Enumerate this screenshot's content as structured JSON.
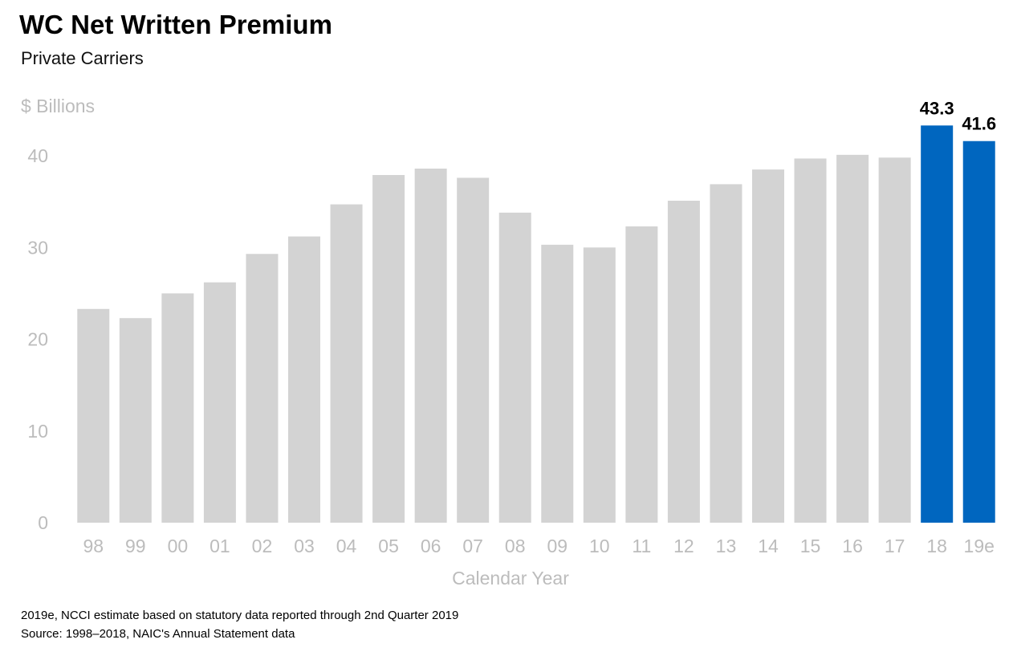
{
  "header": {
    "title": "WC Net Written Premium",
    "subtitle": "Private Carriers"
  },
  "chart_data": {
    "type": "bar",
    "title": "WC Net Written Premium",
    "subtitle": "Private Carriers",
    "ylabel": "$ Billions",
    "xlabel": "Calendar Year",
    "ylim": [
      0,
      45
    ],
    "yticks": [
      0,
      10,
      20,
      30,
      40
    ],
    "categories": [
      "98",
      "99",
      "00",
      "01",
      "02",
      "03",
      "04",
      "05",
      "06",
      "07",
      "08",
      "09",
      "10",
      "11",
      "12",
      "13",
      "14",
      "15",
      "16",
      "17",
      "18",
      "19e"
    ],
    "values": [
      23.3,
      22.3,
      25.0,
      26.2,
      29.3,
      31.2,
      34.7,
      37.9,
      38.6,
      37.6,
      33.8,
      30.3,
      30.0,
      32.3,
      35.1,
      36.9,
      38.5,
      39.7,
      40.1,
      39.8,
      43.3,
      41.6
    ],
    "highlight": [
      "18",
      "19e"
    ],
    "data_labels": {
      "18": "43.3",
      "19e": "41.6"
    },
    "grid": false,
    "colors": {
      "default_bar": "#d3d3d3",
      "highlight_bar": "#0066bf",
      "axis_text": "#bcbcbc",
      "label_text": "#000000"
    }
  },
  "footnotes": {
    "note": "2019e, NCCI estimate based on statutory data reported through 2nd Quarter 2019",
    "source": "Source: 1998–2018, NAIC's Annual Statement data"
  }
}
